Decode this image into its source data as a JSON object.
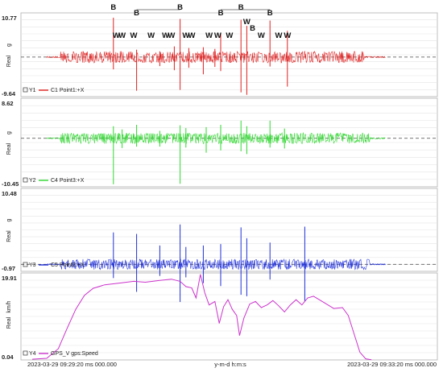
{
  "chart_data": [
    {
      "type": "line",
      "channel": "Y1",
      "series": [
        {
          "name": "C1 Point1:+X",
          "color": "#e02020"
        }
      ],
      "ylim": [
        -9.64,
        10.77
      ],
      "y_top_label": "10.77",
      "y_bottom_label": "-9.64",
      "ylabel_unit": "g",
      "ylabel_kind": "Real",
      "envelope": {
        "base": 1.1,
        "active_start": 0.18,
        "active_end": 0.88
      },
      "spikes": [
        {
          "t": 0.28,
          "up": 9.6,
          "down": 3.0
        },
        {
          "t": 0.36,
          "up": 1.8,
          "down": 8.2
        },
        {
          "t": 0.44,
          "up": 1.4,
          "down": 2.2
        },
        {
          "t": 0.49,
          "up": 2.6,
          "down": 3.2
        },
        {
          "t": 0.51,
          "up": 9.3,
          "down": 8.0
        },
        {
          "t": 0.54,
          "up": 2.2,
          "down": 2.6
        },
        {
          "t": 0.59,
          "up": 2.4,
          "down": 4.2
        },
        {
          "t": 0.63,
          "up": 2.0,
          "down": 2.4
        },
        {
          "t": 0.65,
          "up": 5.8,
          "down": 3.4
        },
        {
          "t": 0.72,
          "up": 9.1,
          "down": 8.6
        },
        {
          "t": 0.74,
          "up": 7.6,
          "down": 9.2
        },
        {
          "t": 0.82,
          "up": 8.9,
          "down": 2.3
        },
        {
          "t": 0.88,
          "up": 6.4,
          "down": 7.2
        }
      ],
      "annotations": [
        {
          "text": "B",
          "t": 0.28,
          "row": 0
        },
        {
          "text": "B",
          "t": 0.36,
          "row": 1
        },
        {
          "text": "B",
          "t": 0.51,
          "row": 0
        },
        {
          "text": "B",
          "t": 0.65,
          "row": 1
        },
        {
          "text": "B",
          "t": 0.72,
          "row": 0
        },
        {
          "text": "B",
          "t": 0.76,
          "row": 3
        },
        {
          "text": "B",
          "t": 0.82,
          "row": 1
        },
        {
          "text": "W",
          "t": 0.29,
          "row": 4
        },
        {
          "text": "W",
          "t": 0.31,
          "row": 4
        },
        {
          "text": "W",
          "t": 0.35,
          "row": 4
        },
        {
          "text": "W",
          "t": 0.41,
          "row": 4
        },
        {
          "text": "W",
          "t": 0.46,
          "row": 4
        },
        {
          "text": "W",
          "t": 0.48,
          "row": 4
        },
        {
          "text": "W",
          "t": 0.53,
          "row": 4
        },
        {
          "text": "W",
          "t": 0.55,
          "row": 4
        },
        {
          "text": "W",
          "t": 0.61,
          "row": 4
        },
        {
          "text": "W",
          "t": 0.64,
          "row": 4
        },
        {
          "text": "W",
          "t": 0.68,
          "row": 4
        },
        {
          "text": "W",
          "t": 0.74,
          "row": 2
        },
        {
          "text": "W",
          "t": 0.79,
          "row": 4
        },
        {
          "text": "W",
          "t": 0.85,
          "row": 4
        },
        {
          "text": "W",
          "t": 0.88,
          "row": 4
        }
      ]
    },
    {
      "type": "line",
      "channel": "Y2",
      "series": [
        {
          "name": "C4 Point3:+X",
          "color": "#2ed82e"
        }
      ],
      "ylim": [
        -10.45,
        8.62
      ],
      "y_top_label": "8.62",
      "y_bottom_label": "-10.45",
      "ylabel_unit": "g",
      "ylabel_kind": "Real",
      "envelope": {
        "base": 0.9,
        "active_start": 0.18,
        "active_end": 0.9
      },
      "spikes": [
        {
          "t": 0.28,
          "up": 2.6,
          "down": 9.9
        },
        {
          "t": 0.31,
          "up": 1.9,
          "down": 2.1
        },
        {
          "t": 0.36,
          "up": 2.9,
          "down": 1.8
        },
        {
          "t": 0.44,
          "up": 1.6,
          "down": 1.8
        },
        {
          "t": 0.51,
          "up": 2.8,
          "down": 9.8
        },
        {
          "t": 0.53,
          "up": 2.2,
          "down": 2.0
        },
        {
          "t": 0.6,
          "up": 2.4,
          "down": 3.1
        },
        {
          "t": 0.65,
          "up": 2.9,
          "down": 2.6
        },
        {
          "t": 0.72,
          "up": 3.8,
          "down": 2.8
        },
        {
          "t": 0.74,
          "up": 2.6,
          "down": 3.4
        },
        {
          "t": 0.82,
          "up": 3.8,
          "down": 2.0
        },
        {
          "t": 0.87,
          "up": 2.1,
          "down": 2.2
        }
      ]
    },
    {
      "type": "line",
      "channel": "Y3",
      "series": [
        {
          "name": "C5 Point2:+X",
          "color": "#1f2fd8"
        }
      ],
      "ylim": [
        -0.97,
        10.48
      ],
      "y_top_label": "10.48",
      "y_bottom_label": "-0.97",
      "ylabel_unit": "g",
      "ylabel_kind": "Real",
      "envelope": {
        "base": 0.55,
        "active_start": 0.18,
        "active_end": 0.9
      },
      "spikes": [
        {
          "t": 0.28,
          "up": 4.4,
          "down": 1.9
        },
        {
          "t": 0.36,
          "up": 4.2,
          "down": 3.8
        },
        {
          "t": 0.44,
          "up": 2.6,
          "down": 1.6
        },
        {
          "t": 0.51,
          "up": 5.5,
          "down": 5.2
        },
        {
          "t": 0.53,
          "up": 2.4,
          "down": 1.8
        },
        {
          "t": 0.59,
          "up": 2.6,
          "down": 2.6
        },
        {
          "t": 0.65,
          "up": 2.8,
          "down": 3.0
        },
        {
          "t": 0.72,
          "up": 5.1,
          "down": 4.2
        },
        {
          "t": 0.74,
          "up": 3.6,
          "down": 4.4
        },
        {
          "t": 0.82,
          "up": 3.0,
          "down": 2.1
        },
        {
          "t": 0.94,
          "up": 5.2,
          "down": 5.1
        }
      ]
    },
    {
      "type": "line",
      "channel": "Y4",
      "series": [
        {
          "name": "GPS_V gps:Speed",
          "color": "#cc33cc"
        }
      ],
      "ylim": [
        0.04,
        19.91
      ],
      "y_top_label": "19.91",
      "y_bottom_label": "0.04",
      "ylabel_unit": "km/h",
      "ylabel_kind": "Real",
      "points": [
        [
          0.0,
          0.2
        ],
        [
          0.05,
          0.4
        ],
        [
          0.09,
          2.6
        ],
        [
          0.12,
          7.2
        ],
        [
          0.15,
          11.6
        ],
        [
          0.18,
          14.8
        ],
        [
          0.21,
          16.4
        ],
        [
          0.25,
          17.2
        ],
        [
          0.3,
          17.6
        ],
        [
          0.35,
          18.0
        ],
        [
          0.39,
          17.8
        ],
        [
          0.44,
          18.2
        ],
        [
          0.48,
          18.5
        ],
        [
          0.51,
          18.0
        ],
        [
          0.53,
          16.8
        ],
        [
          0.55,
          16.5
        ],
        [
          0.565,
          14.2
        ],
        [
          0.58,
          19.6
        ],
        [
          0.595,
          15.4
        ],
        [
          0.61,
          12.6
        ],
        [
          0.63,
          13.4
        ],
        [
          0.645,
          8.4
        ],
        [
          0.66,
          12.2
        ],
        [
          0.675,
          13.8
        ],
        [
          0.69,
          11.6
        ],
        [
          0.705,
          10.2
        ],
        [
          0.715,
          5.6
        ],
        [
          0.73,
          9.6
        ],
        [
          0.75,
          12.8
        ],
        [
          0.77,
          13.4
        ],
        [
          0.79,
          12.0
        ],
        [
          0.81,
          12.6
        ],
        [
          0.83,
          13.6
        ],
        [
          0.85,
          12.4
        ],
        [
          0.87,
          11.0
        ],
        [
          0.89,
          12.6
        ],
        [
          0.91,
          13.8
        ],
        [
          0.93,
          12.6
        ],
        [
          0.95,
          14.2
        ],
        [
          0.97,
          14.6
        ],
        [
          0.99,
          13.8
        ],
        [
          1.01,
          13.0
        ],
        [
          1.04,
          11.8
        ],
        [
          1.07,
          12.0
        ],
        [
          1.09,
          10.2
        ],
        [
          1.11,
          6.0
        ],
        [
          1.13,
          1.8
        ],
        [
          1.15,
          0.3
        ],
        [
          1.17,
          0.1
        ]
      ]
    }
  ],
  "x_axis": {
    "left_label": "2023-03-29 09:29:20 ms 000.000",
    "center_label": "y-m-d h:m:s",
    "right_label": "2023-03-29 09:33:20 ms 000.000"
  }
}
